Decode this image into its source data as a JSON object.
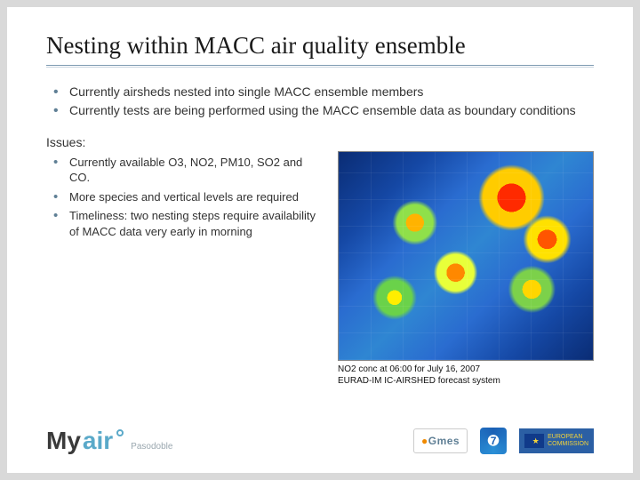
{
  "title": "Nesting within MACC air quality ensemble",
  "intro_bullets": [
    "Currently airsheds nested into single MACC ensemble members",
    "Currently tests are being performed using the MACC ensemble data as boundary conditions"
  ],
  "issues_label": "Issues:",
  "issues": [
    "Currently available O3, NO2, PM10, SO2 and CO.",
    "More species and vertical levels are required",
    "Timeliness: two nesting steps require availability of MACC data very early in morning"
  ],
  "map": {
    "caption_line1": "NO2 conc at 06:00 for July 16, 2007",
    "caption_line2": "EURAD-IM IC-AIRSHED forecast system",
    "background_color": "#1548a5",
    "hot_colors": [
      "#ff2a00",
      "#ff8800",
      "#ffcc00",
      "#e8ff3a",
      "#8fe04a"
    ]
  },
  "footer": {
    "brand_my": "My",
    "brand_air": "air",
    "brand_sub": "Pasodoble",
    "gmes": "Gmes",
    "eu_line1": "EUROPEAN",
    "eu_line2": "COMMISSION"
  },
  "colors": {
    "title_text": "#1a1a1a",
    "bullet_marker": "#5f7f95",
    "body_text": "#333333",
    "slide_bg": "#ffffff",
    "page_bg": "#d9d9d9",
    "rule_top": "#7c9ab0",
    "rule_bottom": "#c8d4de",
    "brand_accent": "#5aa9c9",
    "eu_blue": "#2b5fa4",
    "eu_gold": "#f4d33a"
  }
}
